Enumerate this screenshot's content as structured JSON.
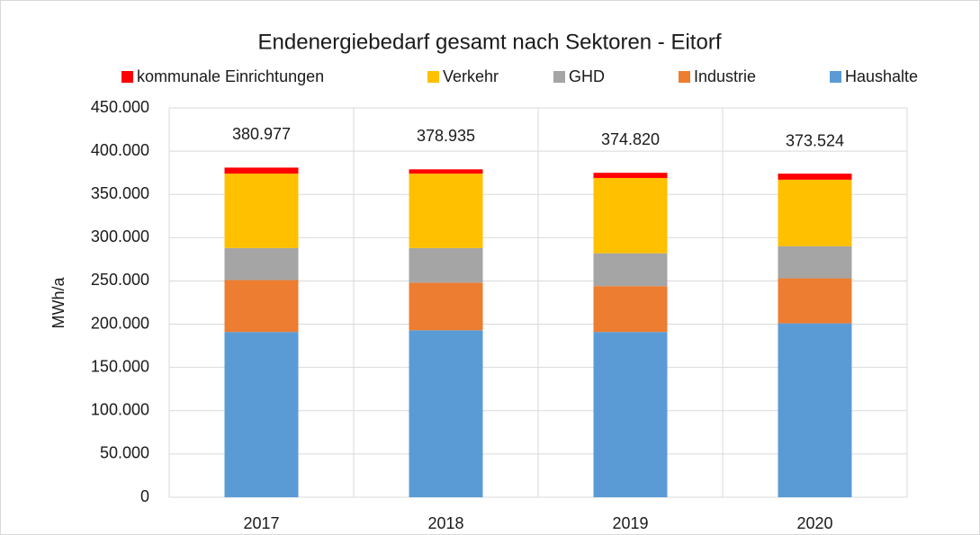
{
  "chart_data": {
    "type": "stacked_bar",
    "title": "Endenergiebedarf gesamt nach Sektoren - Eitorf",
    "y_label": "MWh/a",
    "categories": [
      "2017",
      "2018",
      "2019",
      "2020"
    ],
    "series": [
      {
        "name": "kommunale Einrichtungen",
        "color": "#ff0000",
        "values": [
          7000,
          5000,
          6000,
          7000
        ]
      },
      {
        "name": "Verkehr",
        "color": "#ffc000",
        "values": [
          86000,
          86000,
          87000,
          77000
        ]
      },
      {
        "name": "GHD",
        "color": "#a5a5a5",
        "values": [
          37000,
          40000,
          38000,
          37000
        ]
      },
      {
        "name": "Industrie",
        "color": "#ed7d31",
        "values": [
          60000,
          55000,
          53000,
          52000
        ]
      },
      {
        "name": "Haushalte",
        "color": "#5b9bd5",
        "values": [
          191000,
          193000,
          191000,
          201000
        ]
      }
    ],
    "totals": [
      380977,
      378935,
      374820,
      373524
    ],
    "value_labels": [
      "380.977",
      "378.935",
      "374.820",
      "373.524"
    ],
    "ylim": [
      0,
      450000
    ],
    "yticks": [
      0,
      {
        "value": 50000,
        "label": "50.000"
      },
      {
        "value": 100000,
        "label": "100.000"
      },
      {
        "value": 150000,
        "label": "150.000"
      },
      {
        "value": 200000,
        "label": "200.000"
      },
      {
        "value": 250000,
        "label": "250.000"
      },
      {
        "value": 300000,
        "label": "300.000"
      },
      {
        "value": 350000,
        "label": "350.000"
      },
      {
        "value": 400000,
        "label": "400.000"
      },
      {
        "value": 450000,
        "label": "450.000"
      }
    ],
    "grid": true,
    "legend": "top"
  }
}
